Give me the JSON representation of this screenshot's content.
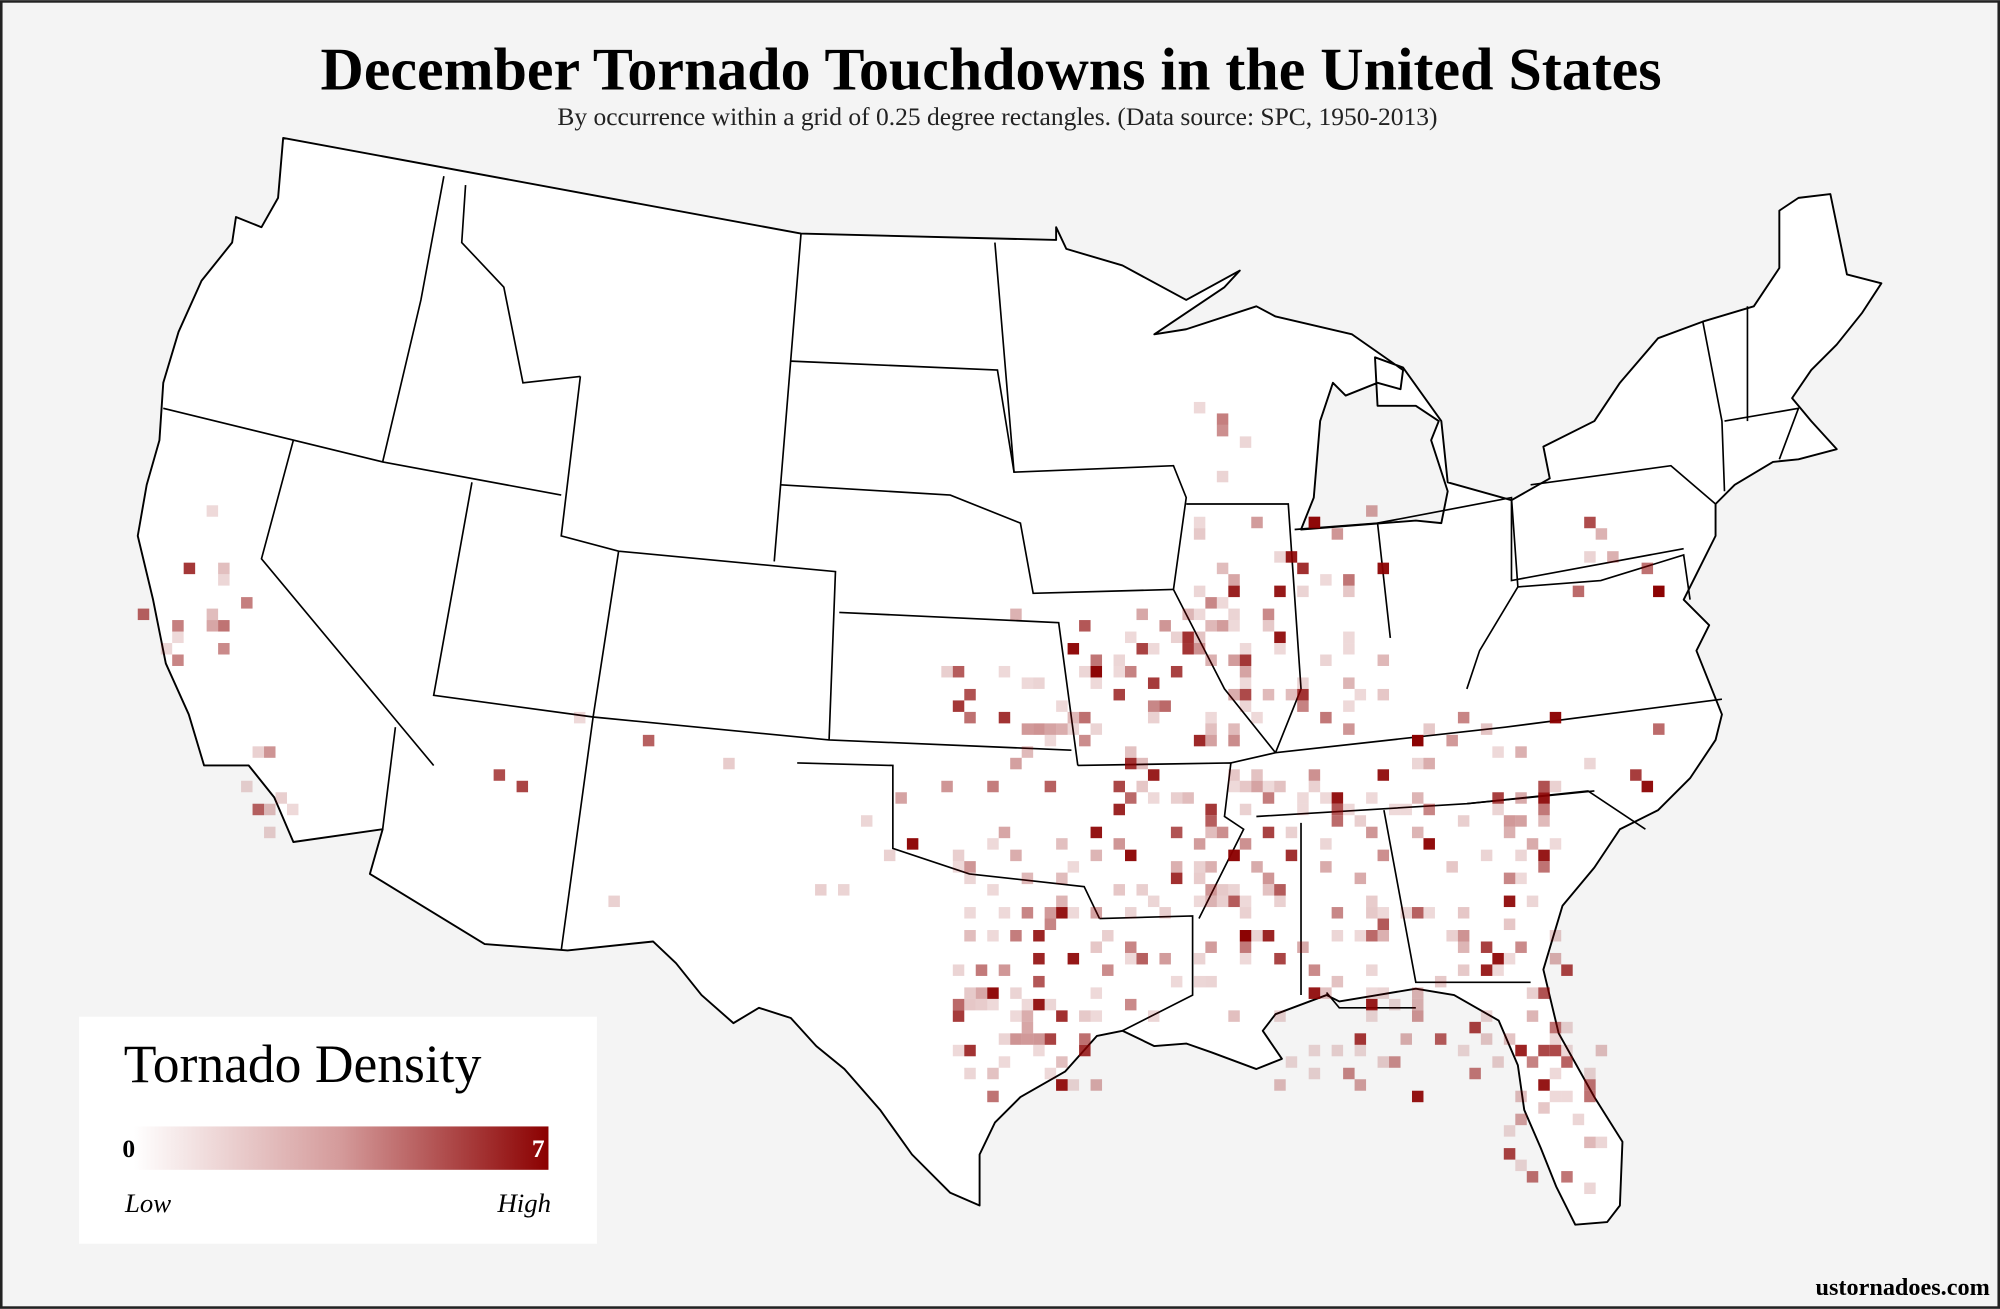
{
  "header": {
    "title": "December Tornado Touchdowns in the United States",
    "subtitle": "By occurrence within a grid of 0.25 degree rectangles. (Data source: SPC, 1950-2013)"
  },
  "legend": {
    "title": "Tornado Density",
    "min": 0,
    "max": 7,
    "low_label": "Low",
    "high_label": "High"
  },
  "credit": "ustornadoes.com"
}
